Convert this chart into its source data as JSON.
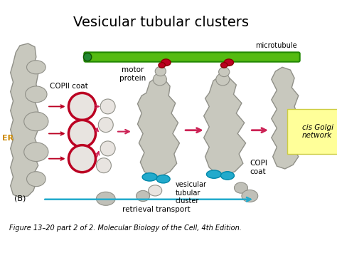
{
  "title": "Vesicular tubular clusters",
  "caption": "Figure 13–20 part 2 of 2. Molecular Biology of the Cell, 4th Edition.",
  "bg_color": "#ffffff",
  "title_fontsize": 14,
  "caption_fontsize": 7,
  "er_label": "ER",
  "panel_label": "(B)",
  "label_copii": "COPII coat",
  "label_motor": "motor\nprotein",
  "label_vesicular": "vesicular\ntubular\ncluster",
  "label_retrieval": "retrieval transport",
  "label_copi": "COPI\ncoat",
  "label_cis": "cis Golgi\nnetwork",
  "label_microtubule": "microtubule",
  "gray_fill": "#c8c8be",
  "gray_stroke": "#909088",
  "red_color": "#bb0022",
  "green_dark": "#228800",
  "green_light": "#55bb11",
  "cyan_color": "#22aacc",
  "pink_arrow": "#cc2255",
  "yellow_bg": "#ffff99",
  "vesicle_fill": "#e8e4e0"
}
